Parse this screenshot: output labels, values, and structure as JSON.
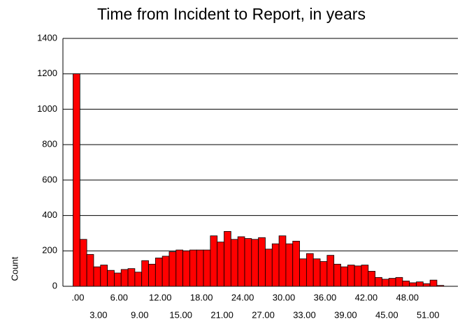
{
  "chart_data": {
    "type": "bar",
    "title": "Time from Incident to Report, in years",
    "y_label": "Count",
    "categories": [
      ".00",
      null,
      null,
      "3.00",
      null,
      null,
      "6.00",
      null,
      null,
      "9.00",
      null,
      null,
      "12.00",
      null,
      null,
      "15.00",
      null,
      null,
      "18.00",
      null,
      null,
      "21.00",
      null,
      null,
      "24.00",
      null,
      null,
      "27.00",
      null,
      null,
      "30.00",
      null,
      null,
      "33.00",
      null,
      null,
      "36.00",
      null,
      null,
      "39.00",
      null,
      null,
      "42.00",
      null,
      null,
      "45.00",
      null,
      null,
      "48.00",
      null,
      null,
      "51.00",
      null,
      null
    ],
    "values": [
      1200,
      265,
      180,
      110,
      120,
      90,
      75,
      95,
      100,
      80,
      145,
      125,
      160,
      170,
      195,
      205,
      200,
      205,
      205,
      205,
      285,
      250,
      310,
      265,
      280,
      270,
      265,
      275,
      210,
      240,
      285,
      240,
      255,
      155,
      185,
      155,
      140,
      175,
      125,
      110,
      120,
      115,
      120,
      85,
      50,
      40,
      45,
      50,
      30,
      20,
      25,
      15,
      35,
      5
    ],
    "color": "#ff0000",
    "ylim": [
      0,
      1400
    ],
    "yticks": [
      0,
      200,
      400,
      600,
      800,
      1000,
      1200,
      1400
    ],
    "grid": true
  }
}
